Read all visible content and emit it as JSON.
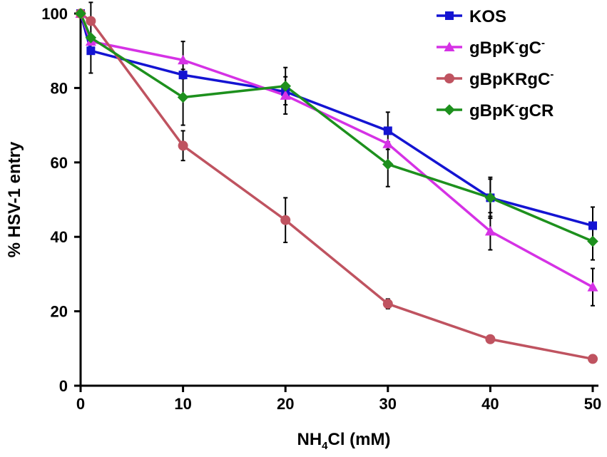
{
  "chart_data": {
    "type": "line",
    "title": "",
    "xlabel": {
      "prefix": "NH",
      "subscript": "4",
      "suffix": "Cl (mM)"
    },
    "ylabel": "% HSV-1 entry",
    "xlim": [
      0,
      50
    ],
    "ylim": [
      0,
      100
    ],
    "xticks": [
      "0",
      "10",
      "20",
      "30",
      "40",
      "50"
    ],
    "yticks": [
      "0",
      "20",
      "40",
      "60",
      "80",
      "100"
    ],
    "grid": false,
    "legend_position": "top-right",
    "series": [
      {
        "name_parts": [
          {
            "t": "KOS"
          }
        ],
        "color": "#1414d2",
        "marker": "square",
        "x": [
          0,
          1,
          10,
          20,
          30,
          40,
          50
        ],
        "y": [
          100,
          90,
          83.5,
          79,
          68.5,
          50.5,
          43
        ],
        "err": [
          0,
          0,
          0,
          0,
          5,
          5,
          5
        ]
      },
      {
        "name_parts": [
          {
            "t": "gBpK"
          },
          {
            "t": "-",
            "sup": true
          },
          {
            "t": "gC"
          },
          {
            "t": "-",
            "sup": true
          }
        ],
        "color": "#d532e5",
        "marker": "triangle",
        "x": [
          0,
          1,
          10,
          20,
          30,
          40,
          50
        ],
        "y": [
          100,
          92.5,
          87.5,
          78,
          65,
          41.5,
          26.5
        ],
        "err": [
          0,
          0,
          5,
          5,
          0,
          5,
          5
        ]
      },
      {
        "name_parts": [
          {
            "t": "gBpKRgC"
          },
          {
            "t": "-",
            "sup": true
          }
        ],
        "color": "#bf5360",
        "marker": "circle",
        "x": [
          0,
          1,
          10,
          20,
          30,
          40,
          50
        ],
        "y": [
          100,
          98,
          64.5,
          44.5,
          22,
          12.5,
          7.2
        ],
        "err": [
          0,
          0,
          4,
          6,
          1.3,
          1,
          0.8
        ]
      },
      {
        "name_parts": [
          {
            "t": "gBpK"
          },
          {
            "t": "-",
            "sup": true
          },
          {
            "t": "gCR"
          }
        ],
        "color": "#1d901d",
        "marker": "diamond",
        "x": [
          0,
          1,
          10,
          20,
          30,
          40,
          50
        ],
        "y": [
          100,
          93.5,
          77.5,
          80.5,
          59.5,
          50.5,
          38.8
        ],
        "err": [
          0,
          9.5,
          7.5,
          5,
          6,
          5.5,
          5
        ]
      }
    ]
  }
}
